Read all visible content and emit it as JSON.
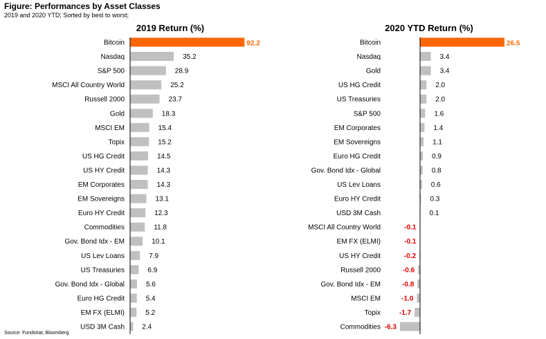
{
  "figure": {
    "title": "Figure: Performances by Asset Classes",
    "subtitle": "2019 and 2020 YTD; Sorted by best to worst;",
    "source": "Source: Fundstrat, Bloomberg"
  },
  "colors": {
    "highlight": "#ff6600",
    "bar": "#c0c0c0",
    "negative": "#e00000",
    "axis": "#000000"
  },
  "chart_data": [
    {
      "type": "bar",
      "orientation": "horizontal",
      "title": "2019 Return (%)",
      "categories": [
        "Bitcoin",
        "Nasdaq",
        "S&P 500",
        "MSCI All Country World",
        "Russell 2000",
        "Gold",
        "MSCI EM",
        "Topix",
        "US HG Credit",
        "US HY Credit",
        "EM Corporates",
        "EM Sovereigns",
        "Euro HY Credit",
        "Commodities",
        "Gov. Bond Idx - EM",
        "US Lev Loans",
        "US Treasuries",
        "Gov. Bond Idx - Global",
        "Euro HG Credit",
        "EM FX (ELMI)",
        "USD 3M Cash"
      ],
      "values": [
        92.2,
        35.2,
        28.9,
        25.2,
        23.7,
        18.3,
        15.4,
        15.2,
        14.5,
        14.3,
        14.3,
        13.1,
        12.3,
        11.8,
        10.1,
        7.9,
        6.9,
        5.6,
        5.4,
        5.2,
        2.4
      ],
      "labels": [
        "92.2",
        "35.2",
        "28.9",
        "25.2",
        "23.7",
        "18.3",
        "15.4",
        "15.2",
        "14.5",
        "14.3",
        "14.3",
        "13.1",
        "12.3",
        "11.8",
        "10.1",
        "7.9",
        "6.9",
        "5.6",
        "5.4",
        "5.2",
        "2.4"
      ],
      "highlight": "Bitcoin"
    },
    {
      "type": "bar",
      "orientation": "horizontal",
      "title": "2020 YTD Return (%)",
      "categories": [
        "Bitcoin",
        "Nasdaq",
        "Gold",
        "US HG Credit",
        "US Treasuries",
        "S&P 500",
        "EM Corporates",
        "EM Sovereigns",
        "Euro HG Credit",
        "Gov. Bond Idx - Global",
        "US Lev Loans",
        "Euro HY Credit",
        "USD 3M Cash",
        "MSCI All Country World",
        "EM FX (ELMI)",
        "US HY Credit",
        "Russell 2000",
        "Gov. Bond Idx - EM",
        "MSCI EM",
        "Topix",
        "Commodities"
      ],
      "values": [
        26.5,
        3.4,
        3.4,
        2.0,
        2.0,
        1.6,
        1.4,
        1.1,
        0.9,
        0.8,
        0.6,
        0.3,
        0.1,
        -0.1,
        -0.1,
        -0.2,
        -0.6,
        -0.8,
        -1.0,
        -1.7,
        -6.3
      ],
      "labels": [
        "26.5",
        "3.4",
        "3.4",
        "2.0",
        "2.0",
        "1.6",
        "1.4",
        "1.1",
        "0.9",
        "0.8",
        "0.6",
        "0.3",
        "0.1",
        "-0.1",
        "-0.1",
        "-0.2",
        "-0.6",
        "-0.8",
        "-1.0",
        "-1.7",
        "-6.3"
      ],
      "highlight": "Bitcoin"
    }
  ]
}
